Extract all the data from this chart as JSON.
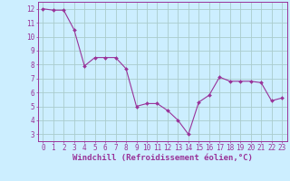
{
  "x": [
    0,
    1,
    2,
    3,
    4,
    5,
    6,
    7,
    8,
    9,
    10,
    11,
    12,
    13,
    14,
    15,
    16,
    17,
    18,
    19,
    20,
    21,
    22,
    23
  ],
  "y": [
    12.0,
    11.9,
    11.9,
    10.5,
    7.9,
    8.5,
    8.5,
    8.5,
    7.7,
    5.0,
    5.2,
    5.2,
    4.7,
    4.0,
    3.0,
    5.3,
    5.8,
    7.1,
    6.8,
    6.8,
    6.8,
    6.7,
    5.4,
    5.6
  ],
  "line_color": "#993399",
  "marker": "D",
  "marker_size": 2.0,
  "bg_color": "#cceeff",
  "grid_color": "#aacccc",
  "xlabel": "Windchill (Refroidissement éolien,°C)",
  "ylabel": "",
  "xlim": [
    -0.5,
    23.5
  ],
  "ylim": [
    2.5,
    12.5
  ],
  "yticks": [
    3,
    4,
    5,
    6,
    7,
    8,
    9,
    10,
    11,
    12
  ],
  "xticks": [
    0,
    1,
    2,
    3,
    4,
    5,
    6,
    7,
    8,
    9,
    10,
    11,
    12,
    13,
    14,
    15,
    16,
    17,
    18,
    19,
    20,
    21,
    22,
    23
  ],
  "tick_color": "#993399",
  "axis_color": "#993399",
  "label_fontsize": 6.5,
  "tick_fontsize": 5.5
}
